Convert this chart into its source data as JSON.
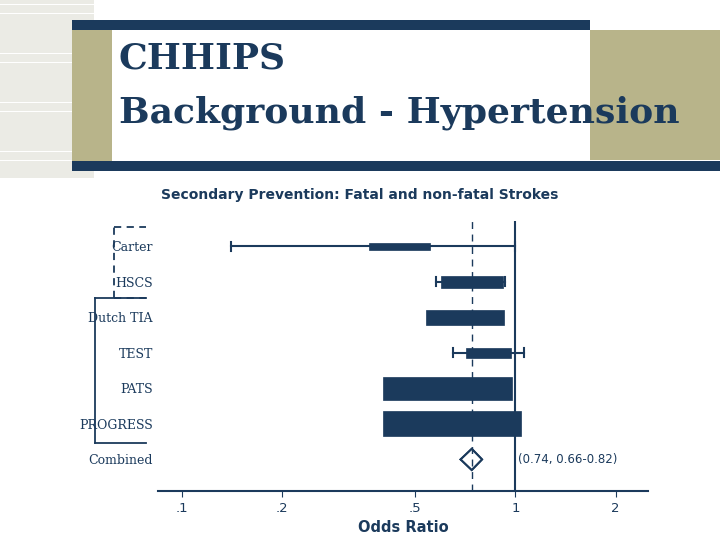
{
  "title_line1": "CHHIPS",
  "title_line2": "Background - Hypertension",
  "subtitle": "Secondary Prevention: Fatal and non-fatal Strokes",
  "studies": [
    "Carter",
    "HSCS",
    "Dutch TIA",
    "TEST",
    "PATS",
    "PROGRESS",
    "Combined"
  ],
  "or_values": [
    0.46,
    0.76,
    0.73,
    0.84,
    0.69,
    0.72,
    0.74
  ],
  "ci_lower": [
    0.14,
    0.58,
    0.59,
    0.65,
    0.6,
    0.65,
    0.66
  ],
  "ci_upper": [
    1.0,
    0.93,
    0.88,
    1.06,
    0.79,
    0.8,
    0.82
  ],
  "box_sizes": [
    0.03,
    0.05,
    0.06,
    0.04,
    0.09,
    0.1,
    0.0
  ],
  "dashed_line_x": 0.74,
  "vertical_line_x": 1.0,
  "x_ticks": [
    0.1,
    0.2,
    0.5,
    1.0,
    2.0
  ],
  "x_tick_labels": [
    ".1",
    ".2",
    ".5",
    "1",
    "2"
  ],
  "xlabel": "Odds Ratio",
  "combined_text": "(0.74, 0.66-0.82)",
  "dark_navy": "#1b3a5c",
  "khaki": "#b8b48a",
  "bg_white": "#ffffff",
  "stripe_color": "#e8e8e8"
}
